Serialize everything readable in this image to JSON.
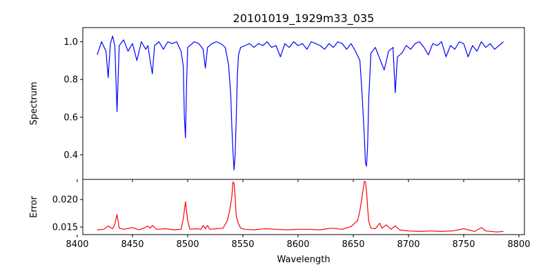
{
  "title": "20101019_1929m33_035",
  "chart_data": [
    {
      "type": "line",
      "panel": "spectrum",
      "title": "20101019_1929m33_035",
      "xlabel": "",
      "ylabel": "Spectrum",
      "xlim": [
        8405,
        8805
      ],
      "ylim": [
        0.27,
        1.075
      ],
      "yticks": [
        "0.4",
        "0.6",
        "0.8",
        "1.0"
      ],
      "ytick_values": [
        0.4,
        0.6,
        0.8,
        1.0
      ],
      "grid": false,
      "color": "#0000ff",
      "series": [
        {
          "x": [
            8418,
            8422,
            8426,
            8428,
            8430,
            8432,
            8434,
            8436,
            8438,
            8442,
            8446,
            8450,
            8454,
            8458,
            8462,
            8464,
            8466,
            8468,
            8470,
            8474,
            8478,
            8482,
            8486,
            8490,
            8494,
            8496,
            8497,
            8498,
            8499,
            8500,
            8502,
            8506,
            8510,
            8514,
            8516,
            8518,
            8522,
            8526,
            8530,
            8534,
            8537,
            8539,
            8540,
            8541,
            8542,
            8543,
            8544,
            8545,
            8546,
            8548,
            8552,
            8556,
            8560,
            8564,
            8568,
            8572,
            8576,
            8580,
            8584,
            8588,
            8592,
            8596,
            8600,
            8604,
            8608,
            8612,
            8616,
            8620,
            8624,
            8628,
            8632,
            8636,
            8640,
            8644,
            8648,
            8652,
            8656,
            8658,
            8660,
            8661,
            8662,
            8663,
            8664,
            8666,
            8670,
            8674,
            8678,
            8682,
            8686,
            8688,
            8690,
            8694,
            8698,
            8702,
            8706,
            8710,
            8714,
            8718,
            8722,
            8726,
            8730,
            8734,
            8738,
            8742,
            8746,
            8750,
            8754,
            8758,
            8762,
            8766,
            8770,
            8774,
            8778,
            8782,
            8786
          ],
          "y": [
            0.93,
            1.0,
            0.95,
            0.81,
            0.99,
            1.03,
            0.98,
            0.63,
            0.98,
            1.01,
            0.95,
            0.99,
            0.9,
            1.0,
            0.96,
            0.98,
            0.9,
            0.83,
            0.98,
            1.0,
            0.96,
            1.0,
            0.99,
            1.0,
            0.95,
            0.87,
            0.6,
            0.49,
            0.78,
            0.97,
            0.98,
            1.0,
            0.99,
            0.96,
            0.86,
            0.97,
            0.99,
            1.0,
            0.99,
            0.97,
            0.88,
            0.72,
            0.55,
            0.42,
            0.32,
            0.4,
            0.6,
            0.82,
            0.93,
            0.97,
            0.98,
            0.99,
            0.97,
            0.99,
            0.98,
            1.0,
            0.97,
            0.98,
            0.92,
            0.99,
            0.97,
            1.0,
            0.98,
            0.99,
            0.96,
            1.0,
            0.99,
            0.98,
            0.96,
            0.99,
            0.97,
            1.0,
            0.99,
            0.96,
            0.99,
            0.95,
            0.9,
            0.72,
            0.5,
            0.36,
            0.34,
            0.45,
            0.7,
            0.94,
            0.97,
            0.91,
            0.85,
            0.95,
            0.97,
            0.73,
            0.92,
            0.94,
            0.98,
            0.96,
            0.99,
            1.0,
            0.97,
            0.93,
            0.99,
            0.98,
            1.0,
            0.92,
            0.98,
            0.96,
            1.0,
            0.99,
            0.92,
            0.98,
            0.95,
            1.0,
            0.97,
            0.99,
            0.96,
            0.98,
            1.0
          ]
        }
      ]
    },
    {
      "type": "line",
      "panel": "error",
      "xlabel": "Wavelength",
      "ylabel": "Error",
      "xlim": [
        8405,
        8805
      ],
      "ylim": [
        0.01363,
        0.02365
      ],
      "xticks": [
        "8400",
        "8450",
        "8500",
        "8550",
        "8600",
        "8650",
        "8700",
        "8750",
        "8800"
      ],
      "xtick_values": [
        8400,
        8450,
        8500,
        8550,
        8600,
        8650,
        8700,
        8750,
        8800
      ],
      "yticks": [
        "0.015",
        "0.020"
      ],
      "ytick_values": [
        0.015,
        0.02
      ],
      "grid": false,
      "color": "#ff0000",
      "series": [
        {
          "x": [
            8418,
            8424,
            8428,
            8432,
            8434,
            8436,
            8438,
            8442,
            8450,
            8456,
            8460,
            8464,
            8466,
            8468,
            8472,
            8480,
            8488,
            8494,
            8496,
            8498,
            8500,
            8502,
            8508,
            8512,
            8514,
            8516,
            8518,
            8520,
            8526,
            8532,
            8536,
            8538,
            8540,
            8541,
            8542,
            8543,
            8544,
            8546,
            8548,
            8552,
            8560,
            8570,
            8580,
            8590,
            8600,
            8610,
            8620,
            8630,
            8640,
            8648,
            8654,
            8656,
            8658,
            8660,
            8661,
            8662,
            8663,
            8664,
            8666,
            8670,
            8674,
            8676,
            8680,
            8684,
            8688,
            8692,
            8700,
            8710,
            8720,
            8730,
            8740,
            8750,
            8760,
            8766,
            8770,
            8780,
            8786
          ],
          "y": [
            0.0145,
            0.0146,
            0.0152,
            0.0147,
            0.0155,
            0.0173,
            0.0148,
            0.0146,
            0.0149,
            0.0145,
            0.0148,
            0.0152,
            0.0148,
            0.0153,
            0.0146,
            0.0147,
            0.0145,
            0.0146,
            0.0165,
            0.0196,
            0.0162,
            0.0146,
            0.0147,
            0.0146,
            0.0153,
            0.0147,
            0.0153,
            0.0146,
            0.0147,
            0.0148,
            0.0162,
            0.018,
            0.0205,
            0.0232,
            0.0229,
            0.0205,
            0.017,
            0.0156,
            0.0148,
            0.0146,
            0.0145,
            0.0147,
            0.0146,
            0.0145,
            0.0146,
            0.0146,
            0.0145,
            0.0148,
            0.0146,
            0.0151,
            0.0162,
            0.018,
            0.0205,
            0.0233,
            0.0232,
            0.0215,
            0.0185,
            0.016,
            0.0148,
            0.0147,
            0.0157,
            0.0148,
            0.0154,
            0.0146,
            0.0152,
            0.0145,
            0.0143,
            0.0142,
            0.0143,
            0.0142,
            0.0143,
            0.0147,
            0.0142,
            0.0149,
            0.0143,
            0.0141,
            0.0142
          ]
        }
      ]
    }
  ]
}
